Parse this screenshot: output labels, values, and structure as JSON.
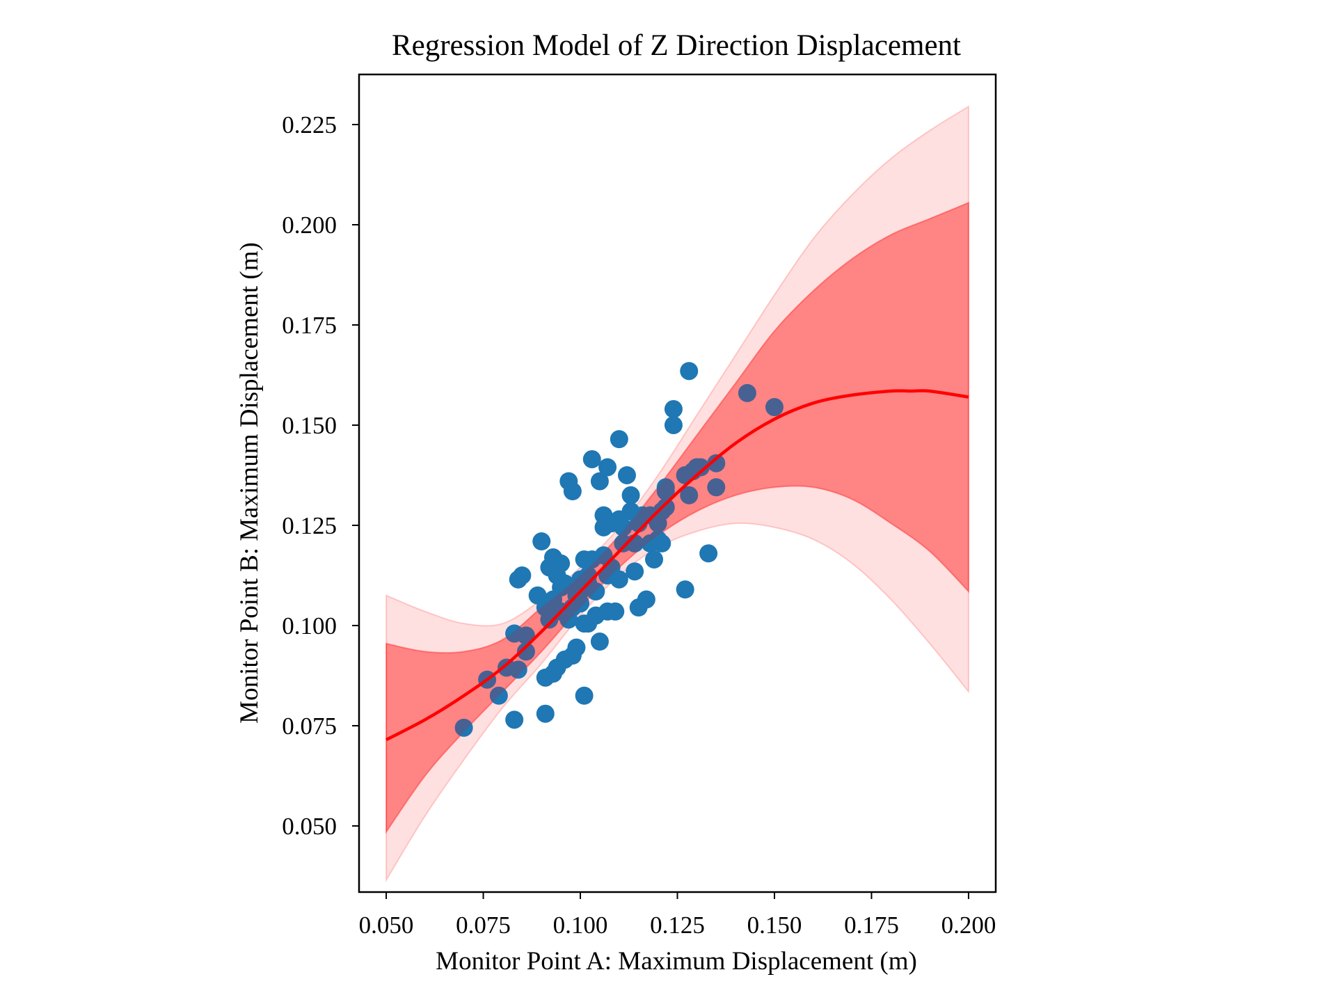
{
  "chart_data": {
    "type": "scatter",
    "title": "Regression Model of Z Direction Displacement",
    "xlabel": "Monitor Point A: Maximum Displacement (m)",
    "ylabel": "Monitor Point B: Maximum Displacement (m)",
    "xlim": [
      0.043,
      0.207
    ],
    "ylim": [
      0.0335,
      0.2375
    ],
    "xticks": [
      "0.050",
      "0.075",
      "0.100",
      "0.125",
      "0.150",
      "0.175",
      "0.200"
    ],
    "yticks": [
      "0.050",
      "0.075",
      "0.100",
      "0.125",
      "0.150",
      "0.175",
      "0.200",
      "0.225"
    ],
    "grid": false,
    "legend": "none",
    "colors": {
      "points": "#1f77b4",
      "fit_line": "#ff0000",
      "confidence_band": "#ff0000",
      "prediction_band": "#ff0000"
    },
    "scatter": {
      "x": [
        0.07,
        0.076,
        0.079,
        0.081,
        0.083,
        0.083,
        0.084,
        0.083,
        0.085,
        0.084,
        0.086,
        0.086,
        0.089,
        0.09,
        0.091,
        0.091,
        0.091,
        0.092,
        0.092,
        0.093,
        0.093,
        0.093,
        0.094,
        0.094,
        0.095,
        0.095,
        0.095,
        0.096,
        0.096,
        0.097,
        0.097,
        0.098,
        0.098,
        0.098,
        0.099,
        0.099,
        0.1,
        0.1,
        0.1,
        0.101,
        0.101,
        0.101,
        0.102,
        0.102,
        0.102,
        0.103,
        0.103,
        0.104,
        0.104,
        0.105,
        0.105,
        0.106,
        0.106,
        0.106,
        0.107,
        0.107,
        0.107,
        0.108,
        0.108,
        0.109,
        0.11,
        0.11,
        0.11,
        0.111,
        0.111,
        0.112,
        0.113,
        0.113,
        0.114,
        0.114,
        0.114,
        0.115,
        0.115,
        0.116,
        0.117,
        0.118,
        0.118,
        0.119,
        0.12,
        0.12,
        0.121,
        0.121,
        0.122,
        0.122,
        0.122,
        0.124,
        0.124,
        0.127,
        0.127,
        0.128,
        0.128,
        0.129,
        0.13,
        0.131,
        0.133,
        0.135,
        0.135,
        0.143,
        0.15
      ],
      "y": [
        0.0745,
        0.0865,
        0.0825,
        0.0895,
        0.0765,
        0.098,
        0.1115,
        0.098,
        0.1125,
        0.089,
        0.0935,
        0.0975,
        0.1075,
        0.121,
        0.087,
        0.078,
        0.1045,
        0.1145,
        0.1015,
        0.117,
        0.088,
        0.1065,
        0.1125,
        0.0895,
        0.1155,
        0.1095,
        0.1035,
        0.0915,
        0.1105,
        0.136,
        0.1015,
        0.1335,
        0.0925,
        0.1045,
        0.1075,
        0.0945,
        0.1115,
        0.1055,
        0.1085,
        0.0825,
        0.1165,
        0.1005,
        0.1125,
        0.1005,
        0.1105,
        0.1415,
        0.1165,
        0.1085,
        0.1025,
        0.136,
        0.096,
        0.1275,
        0.1245,
        0.1175,
        0.1395,
        0.1125,
        0.1035,
        0.1145,
        0.1255,
        0.1035,
        0.1465,
        0.1265,
        0.1115,
        0.1245,
        0.1205,
        0.1375,
        0.1325,
        0.1285,
        0.1205,
        0.1135,
        0.1205,
        0.1045,
        0.1255,
        0.1275,
        0.1065,
        0.1205,
        0.1275,
        0.1165,
        0.1255,
        0.1215,
        0.1285,
        0.1205,
        0.1335,
        0.1295,
        0.1345,
        0.154,
        0.15,
        0.1375,
        0.109,
        0.1635,
        0.1325,
        0.1385,
        0.1395,
        0.1395,
        0.118,
        0.1405,
        0.1345,
        0.158,
        0.1545
      ]
    },
    "fit_line": {
      "x": [
        0.05,
        0.06,
        0.07,
        0.08,
        0.09,
        0.1,
        0.11,
        0.12,
        0.13,
        0.14,
        0.15,
        0.16,
        0.17,
        0.18,
        0.185,
        0.19,
        0.2
      ],
      "y": [
        0.0715,
        0.0765,
        0.0825,
        0.0895,
        0.0985,
        0.1085,
        0.1185,
        0.1285,
        0.1375,
        0.1455,
        0.1515,
        0.1555,
        0.1575,
        0.1585,
        0.1585,
        0.1585,
        0.157
      ]
    },
    "confidence_band": {
      "x": [
        0.05,
        0.06,
        0.07,
        0.08,
        0.09,
        0.1,
        0.11,
        0.12,
        0.13,
        0.14,
        0.15,
        0.16,
        0.17,
        0.18,
        0.19,
        0.2
      ],
      "lower": [
        0.0485,
        0.0625,
        0.0735,
        0.0835,
        0.0935,
        0.1045,
        0.1145,
        0.1225,
        0.1285,
        0.1325,
        0.1345,
        0.1345,
        0.1315,
        0.1255,
        0.1185,
        0.1085
      ],
      "upper": [
        0.0955,
        0.0935,
        0.0935,
        0.0965,
        0.1045,
        0.1125,
        0.1225,
        0.1345,
        0.1475,
        0.1605,
        0.1735,
        0.1835,
        0.1915,
        0.1975,
        0.2015,
        0.2055
      ]
    },
    "prediction_band": {
      "x": [
        0.05,
        0.06,
        0.07,
        0.08,
        0.09,
        0.1,
        0.11,
        0.12,
        0.13,
        0.14,
        0.15,
        0.16,
        0.17,
        0.18,
        0.19,
        0.2
      ],
      "lower": [
        0.0365,
        0.0525,
        0.0665,
        0.0795,
        0.0905,
        0.1025,
        0.1125,
        0.1195,
        0.1235,
        0.1255,
        0.1245,
        0.1215,
        0.1155,
        0.1065,
        0.0955,
        0.0835
      ],
      "upper": [
        0.1075,
        0.1035,
        0.1005,
        0.1005,
        0.1065,
        0.1145,
        0.1245,
        0.1375,
        0.1525,
        0.1675,
        0.1825,
        0.1965,
        0.2075,
        0.2165,
        0.2235,
        0.2295
      ]
    }
  }
}
